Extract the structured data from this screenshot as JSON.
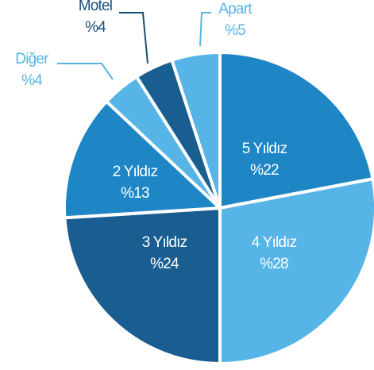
{
  "chart_data": {
    "type": "pie",
    "categories": [
      "5 Yıldız",
      "4 Yıldız",
      "3 Yıldız",
      "2 Yıldız",
      "Diğer",
      "Motel",
      "Apart"
    ],
    "values": [
      22,
      28,
      24,
      13,
      4,
      4,
      5
    ],
    "value_labels": [
      "%22",
      "%28",
      "%24",
      "%13",
      "%4",
      "%4",
      "%5"
    ],
    "colors": [
      "#1f86c6",
      "#56b4e6",
      "#1a5e91",
      "#1f86c6",
      "#56b4e6",
      "#1a5e91",
      "#56b4e6"
    ]
  }
}
